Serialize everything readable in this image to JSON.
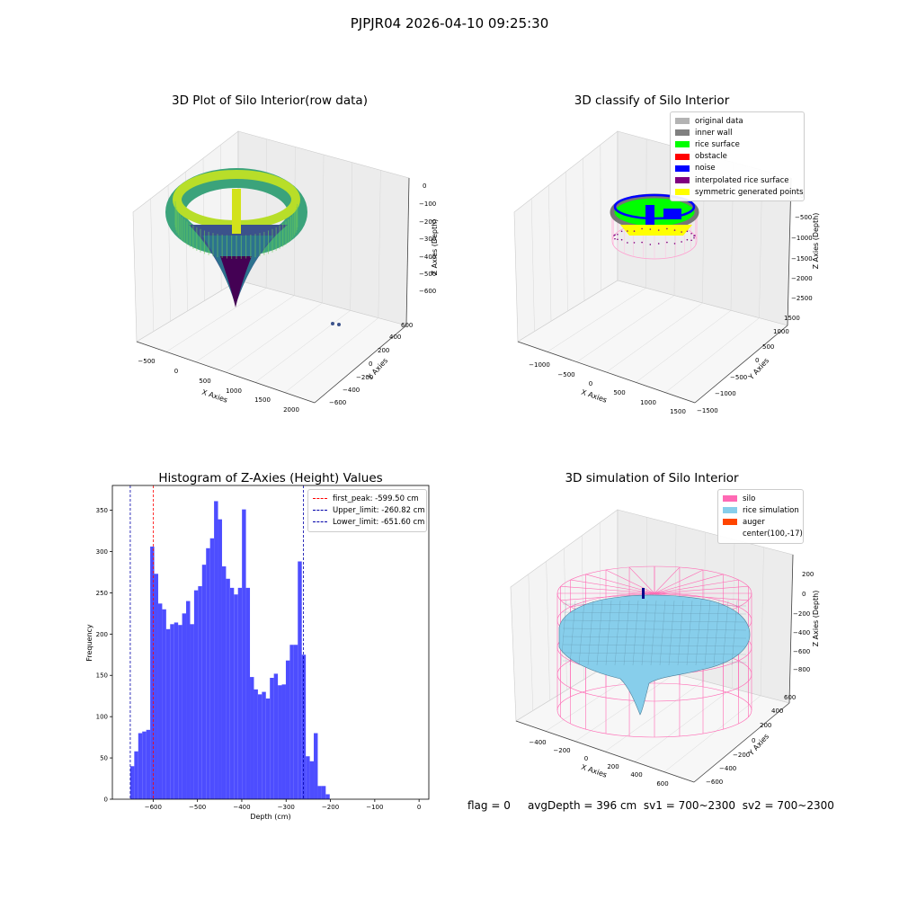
{
  "figure": {
    "title": "PJPJR04 2026-04-10 09:25:30",
    "footer": {
      "flag": "flag = 0",
      "avg_depth": "avgDepth = 396 cm",
      "sv1": "sv1 = 700~2300",
      "sv2": "sv2 = 700~2300"
    }
  },
  "chart_data": [
    {
      "type": "scatter",
      "projection": "3d",
      "title": "3D Plot of Silo Interior(row data)",
      "xlabel": "X Axies",
      "ylabel": "Y Axies",
      "zlabel": "Z Axies (Depth)",
      "x_ticks": [
        "−500",
        "0",
        "500",
        "1000",
        "1500",
        "2000"
      ],
      "y_ticks": [
        "−600",
        "−400",
        "−200",
        "0",
        "200",
        "400",
        "600"
      ],
      "z_ticks": [
        "0",
        "−100",
        "−200",
        "−300",
        "−400",
        "−500",
        "−600"
      ],
      "colormap": "viridis",
      "grid": true
    },
    {
      "type": "scatter",
      "projection": "3d",
      "title": "3D classify of Silo Interior",
      "xlabel": "X Axies",
      "ylabel": "Y Axies",
      "zlabel": "Z Axies (Depth)",
      "x_ticks": [
        "−1000",
        "−500",
        "0",
        "500",
        "1000",
        "1500"
      ],
      "y_ticks": [
        "−1500",
        "−1000",
        "−500",
        "0",
        "500",
        "1000",
        "1500"
      ],
      "z_ticks": [
        "0",
        "−500",
        "−1000",
        "−1500",
        "−2000",
        "−2500"
      ],
      "legend_position": "top-right",
      "legend": [
        {
          "label": "original data",
          "color": "#b3b3b3"
        },
        {
          "label": "inner wall",
          "color": "#808080"
        },
        {
          "label": "rice surface",
          "color": "#00ff00"
        },
        {
          "label": "obstacle",
          "color": "#ff0000"
        },
        {
          "label": "noise",
          "color": "#0000ff"
        },
        {
          "label": "interpolated rice surface",
          "color": "#800080"
        },
        {
          "label": "symmetric generated points",
          "color": "#ffff00"
        }
      ],
      "grid": true
    },
    {
      "type": "bar",
      "title": "Histogram of Z-Axies (Height) Values",
      "xlabel": "Depth (cm)",
      "ylabel": "Frequency",
      "xlim": [
        -692,
        22
      ],
      "ylim": [
        0,
        380
      ],
      "x_ticks": [
        -600,
        -500,
        -400,
        -300,
        -200,
        -100,
        0
      ],
      "y_ticks": [
        0,
        50,
        100,
        150,
        200,
        250,
        300,
        350
      ],
      "bin_start": -651.6,
      "bin_width": 9.0,
      "values": [
        40,
        58,
        80,
        82,
        84,
        306,
        273,
        237,
        230,
        206,
        212,
        214,
        211,
        225,
        240,
        212,
        253,
        258,
        284,
        304,
        316,
        361,
        339,
        282,
        267,
        256,
        248,
        256,
        351,
        256,
        148,
        133,
        127,
        130,
        122,
        147,
        152,
        138,
        139,
        168,
        187,
        187,
        288,
        175,
        52,
        46,
        80,
        16,
        16,
        6
      ],
      "bar_color": "#4d4dff",
      "lines": [
        {
          "label": "first_peak: -599.50 cm",
          "x": -599.5,
          "color": "#ff0000"
        },
        {
          "label": "Upper_limit: -260.82 cm",
          "x": -260.82,
          "color": "#0000aa"
        },
        {
          "label": "Lower_limit: -651.60 cm",
          "x": -651.6,
          "color": "#0000aa"
        }
      ],
      "legend_position": "top-right",
      "grid": false
    },
    {
      "type": "area",
      "projection": "3d",
      "title": "3D simulation of Silo Interior",
      "xlabel": "X Axies",
      "ylabel": "Y Axies",
      "zlabel": "Z Axies (Depth)",
      "x_ticks": [
        "−400",
        "−200",
        "0",
        "200",
        "400",
        "600"
      ],
      "y_ticks": [
        "−600",
        "−400",
        "−200",
        "0",
        "200",
        "400",
        "600"
      ],
      "z_ticks": [
        "200",
        "0",
        "−200",
        "−400",
        "−600",
        "−800"
      ],
      "legend_position": "top-right",
      "legend": [
        {
          "label": "silo",
          "color": "#ff69b4"
        },
        {
          "label": "rice simulation",
          "color": "#87ceeb"
        },
        {
          "label": "auger",
          "color": "#ff4500"
        },
        {
          "label": "center(100,-17)",
          "color": ""
        }
      ],
      "grid": true
    }
  ]
}
